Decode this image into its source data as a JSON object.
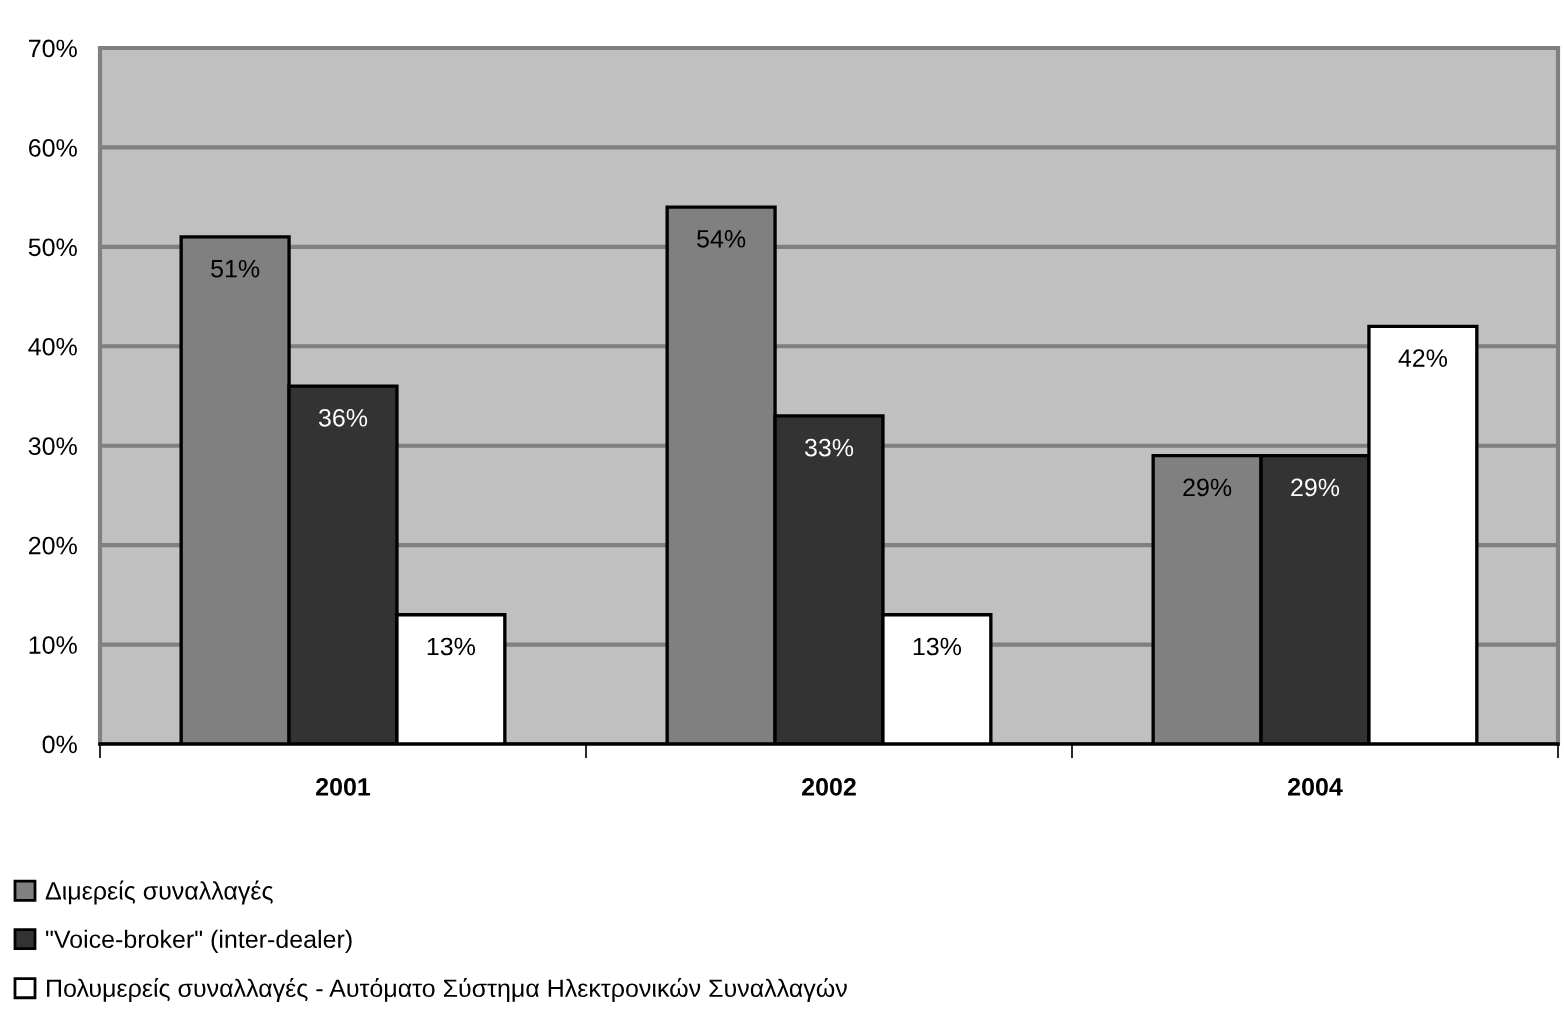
{
  "chart_data": {
    "type": "bar",
    "categories": [
      "2001",
      "2002",
      "2004"
    ],
    "series": [
      {
        "name": "Διμερείς συναλλαγές",
        "color": "#808080",
        "values": [
          51,
          54,
          29
        ],
        "value_labels": [
          "51%",
          "54%",
          "29%"
        ]
      },
      {
        "name": "\"Voice-broker\" (inter-dealer)",
        "color": "#333333",
        "values": [
          36,
          33,
          29
        ],
        "value_labels": [
          "36%",
          "33%",
          "29%"
        ]
      },
      {
        "name": "Πολυμερείς συναλλαγές - Αυτόματο Σύστημα Ηλεκτρονικών Συναλλαγών",
        "color": "#ffffff",
        "values": [
          13,
          13,
          42
        ],
        "value_labels": [
          "13%",
          "13%",
          "42%"
        ]
      }
    ],
    "ylim": [
      0,
      70
    ],
    "yticks": [
      {
        "value": 0,
        "label": "0%"
      },
      {
        "value": 10,
        "label": "10%"
      },
      {
        "value": 20,
        "label": "20%"
      },
      {
        "value": 30,
        "label": "30%"
      },
      {
        "value": 40,
        "label": "40%"
      },
      {
        "value": 50,
        "label": "50%"
      },
      {
        "value": 60,
        "label": "60%"
      },
      {
        "value": 70,
        "label": "70%"
      }
    ],
    "grid": "y",
    "legend": "bottom"
  }
}
